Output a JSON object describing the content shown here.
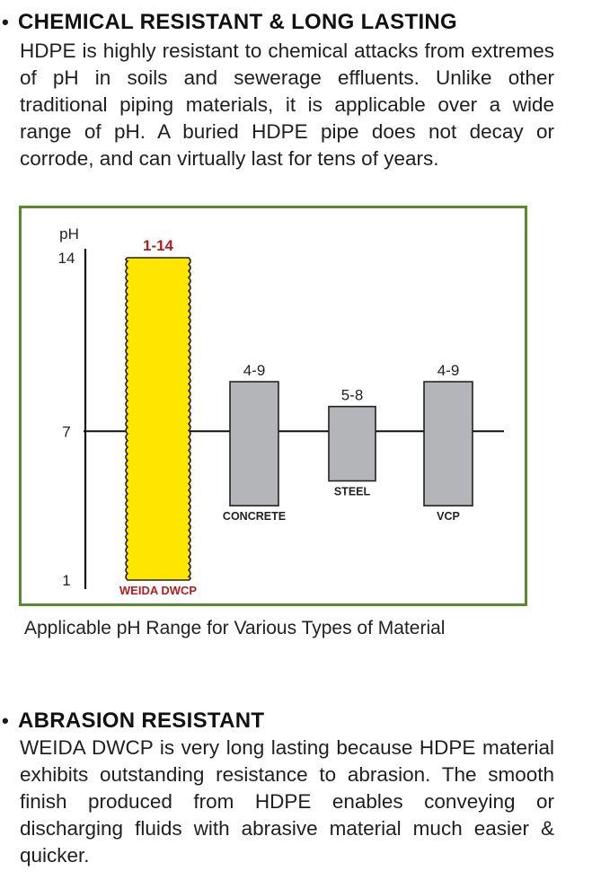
{
  "section1": {
    "bullet": "•",
    "heading": "CHEMICAL RESISTANT & LONG LASTING",
    "body": "HDPE is highly resistant to chemical attacks from extremes of pH in soils and sewerage effluents. Unlike other traditional piping materials, it is applicable over a wide range of pH. A buried HDPE pipe does not decay or corrode, and can virtually last for tens of years."
  },
  "chart_data": {
    "type": "bar",
    "ylabel": "pH",
    "yticks": [
      "14",
      "7",
      "1"
    ],
    "ylim": [
      1,
      14
    ],
    "reference_line": 7,
    "series": [
      {
        "label": "WEIDA DWCP",
        "range_label": "1-14",
        "low": 1,
        "high": 14,
        "color": "#ffe600",
        "label_color": "#b02020"
      },
      {
        "label": "CONCRETE",
        "range_label": "4-9",
        "low": 4,
        "high": 9,
        "color": "#b3b5b8",
        "label_color": "#222222"
      },
      {
        "label": "STEEL",
        "range_label": "5-8",
        "low": 5,
        "high": 8,
        "color": "#b3b5b8",
        "label_color": "#222222"
      },
      {
        "label": "VCP",
        "range_label": "4-9",
        "low": 4,
        "high": 9,
        "color": "#b3b5b8",
        "label_color": "#222222"
      }
    ],
    "frame_color": "#5a8a2e"
  },
  "caption": "Applicable pH Range for Various Types of Material",
  "section2": {
    "bullet": "•",
    "heading": "ABRASION RESISTANT",
    "body": "WEIDA DWCP is very long lasting because HDPE material exhibits outstanding resistance to abrasion. The smooth finish produced from HDPE enables conveying or discharging fluids with abrasive material much easier & quicker."
  }
}
